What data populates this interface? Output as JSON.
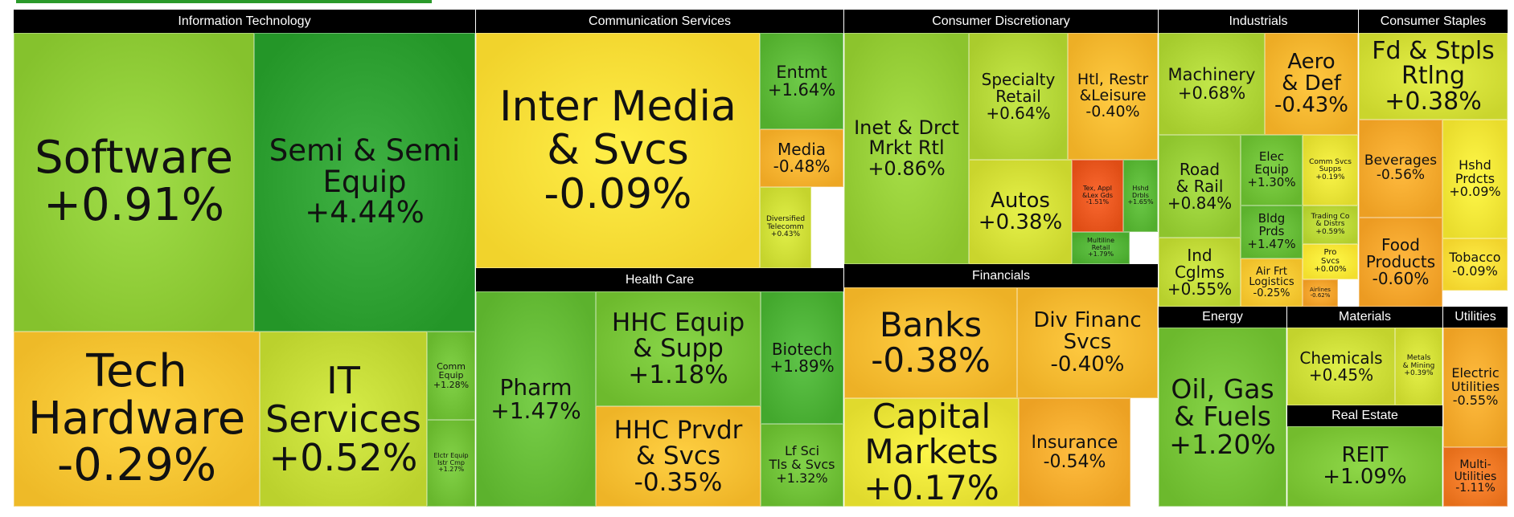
{
  "chart_data": {
    "type": "treemap",
    "sectors": [
      {
        "name": "Information Technology",
        "industries": [
          {
            "name": "Software",
            "change": "+0.91%",
            "value": 0.91
          },
          {
            "name": "Semi & Semi\nEquip",
            "change": "+4.44%",
            "value": 4.44
          },
          {
            "name": "Tech\nHardware",
            "change": "-0.29%",
            "value": -0.29
          },
          {
            "name": "IT\nServices",
            "change": "+0.52%",
            "value": 0.52
          },
          {
            "name": "Comm\nEquip",
            "change": "+1.28%",
            "value": 1.28
          },
          {
            "name": "Elctr Equip\nIstr Cmp",
            "change": "+1.27%",
            "value": 1.27
          }
        ]
      },
      {
        "name": "Communication Services",
        "industries": [
          {
            "name": "Inter Media\n& Svcs",
            "change": "-0.09%",
            "value": -0.09
          },
          {
            "name": "Entmt",
            "change": "+1.64%",
            "value": 1.64
          },
          {
            "name": "Media",
            "change": "-0.48%",
            "value": -0.48
          },
          {
            "name": "Diversified\nTelecomm",
            "change": "+0.43%",
            "value": 0.43
          }
        ]
      },
      {
        "name": "Health Care",
        "industries": [
          {
            "name": "Pharm",
            "change": "+1.47%",
            "value": 1.47
          },
          {
            "name": "HHC Equip\n& Supp",
            "change": "+1.18%",
            "value": 1.18
          },
          {
            "name": "HHC Prvdr\n& Svcs",
            "change": "-0.35%",
            "value": -0.35
          },
          {
            "name": "Biotech",
            "change": "+1.89%",
            "value": 1.89
          },
          {
            "name": "Lf Sci\nTls & Svcs",
            "change": "+1.32%",
            "value": 1.32
          }
        ]
      },
      {
        "name": "Consumer Discretionary",
        "industries": [
          {
            "name": "Inet & Drct\nMrkt Rtl",
            "change": "+0.86%",
            "value": 0.86
          },
          {
            "name": "Specialty\nRetail",
            "change": "+0.64%",
            "value": 0.64
          },
          {
            "name": "Htl, Restr\n&Leisure",
            "change": "-0.40%",
            "value": -0.4
          },
          {
            "name": "Autos",
            "change": "+0.38%",
            "value": 0.38
          },
          {
            "name": "Tex, Appl\n&Lex Gds",
            "change": "-1.51%",
            "value": -1.51
          },
          {
            "name": "Hshd\nDrbls",
            "change": "+1.65%",
            "value": 1.65
          },
          {
            "name": "Multiline\nRetail",
            "change": "+1.79%",
            "value": 1.79
          }
        ]
      },
      {
        "name": "Financials",
        "industries": [
          {
            "name": "Banks",
            "change": "-0.38%",
            "value": -0.38
          },
          {
            "name": "Div Financ\nSvcs",
            "change": "-0.40%",
            "value": -0.4
          },
          {
            "name": "Capital\nMarkets",
            "change": "+0.17%",
            "value": 0.17
          },
          {
            "name": "Insurance",
            "change": "-0.54%",
            "value": -0.54
          }
        ]
      },
      {
        "name": "Industrials",
        "industries": [
          {
            "name": "Machinery",
            "change": "+0.68%",
            "value": 0.68
          },
          {
            "name": "Aero\n& Def",
            "change": "-0.43%",
            "value": -0.43
          },
          {
            "name": "Road\n& Rail",
            "change": "+0.84%",
            "value": 0.84
          },
          {
            "name": "Elec\nEquip",
            "change": "+1.30%",
            "value": 1.3
          },
          {
            "name": "Comm Svcs\nSupps",
            "change": "+0.19%",
            "value": 0.19
          },
          {
            "name": "Bldg\nPrds",
            "change": "+1.47%",
            "value": 1.47
          },
          {
            "name": "Trading Co\n& Distrs",
            "change": "+0.59%",
            "value": 0.59
          },
          {
            "name": "Ind\nCglms",
            "change": "+0.55%",
            "value": 0.55
          },
          {
            "name": "Air Frt\nLogistics",
            "change": "-0.25%",
            "value": -0.25
          },
          {
            "name": "Pro\nSvcs",
            "change": "+0.00%",
            "value": 0.0
          },
          {
            "name": "Airlines",
            "change": "-0.62%",
            "value": -0.62
          }
        ]
      },
      {
        "name": "Consumer Staples",
        "industries": [
          {
            "name": "Fd & Stpls\nRtlng",
            "change": "+0.38%",
            "value": 0.38
          },
          {
            "name": "Beverages",
            "change": "-0.56%",
            "value": -0.56
          },
          {
            "name": "Hshd\nPrdcts",
            "change": "+0.09%",
            "value": 0.09
          },
          {
            "name": "Food\nProducts",
            "change": "-0.60%",
            "value": -0.6
          },
          {
            "name": "Tobacco",
            "change": "-0.09%",
            "value": -0.09
          }
        ]
      },
      {
        "name": "Energy",
        "industries": [
          {
            "name": "Oil, Gas\n& Fuels",
            "change": "+1.20%",
            "value": 1.2
          }
        ]
      },
      {
        "name": "Materials",
        "industries": [
          {
            "name": "Chemicals",
            "change": "+0.45%",
            "value": 0.45
          },
          {
            "name": "Metals\n& Mining",
            "change": "+0.39%",
            "value": 0.39
          }
        ]
      },
      {
        "name": "Real Estate",
        "industries": [
          {
            "name": "REIT",
            "change": "+1.09%",
            "value": 1.09
          }
        ]
      },
      {
        "name": "Utilities",
        "industries": [
          {
            "name": "Electric\nUtilities",
            "change": "-0.55%",
            "value": -0.55
          },
          {
            "name": "Multi-\nUtilities",
            "change": "-1.11%",
            "value": -1.11
          }
        ]
      }
    ]
  }
}
